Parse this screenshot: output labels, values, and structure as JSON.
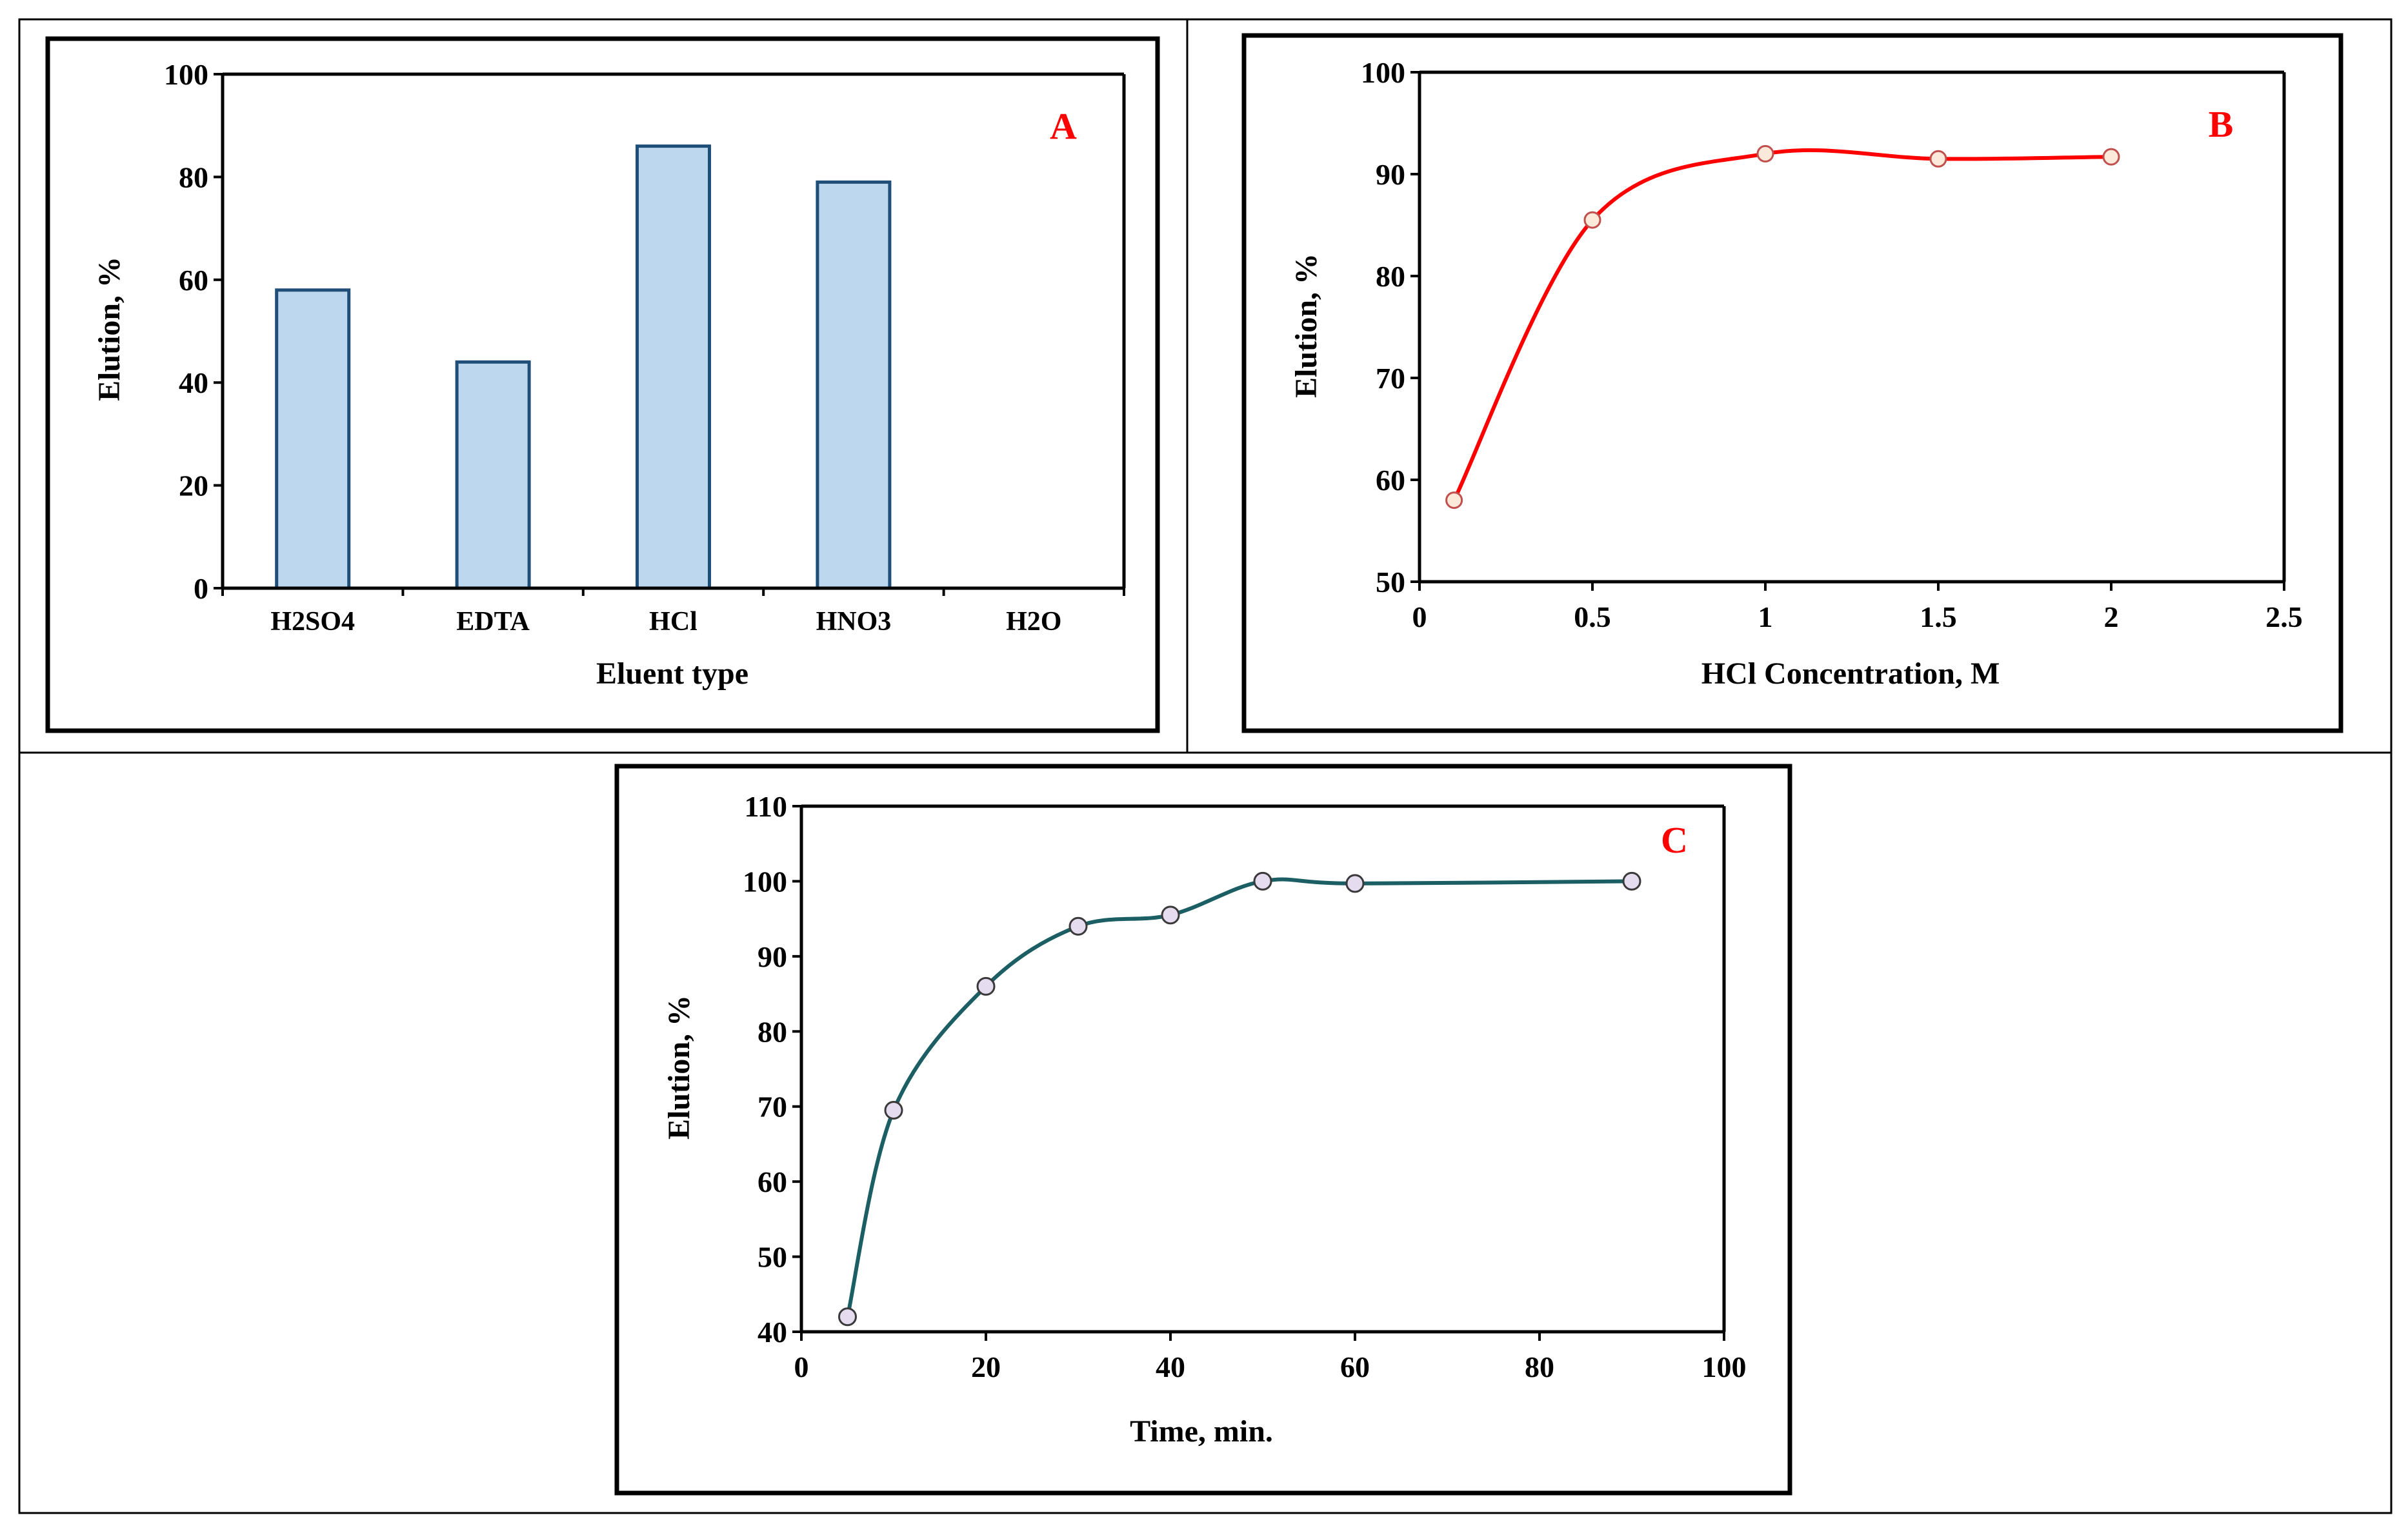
{
  "colors": {
    "bar_fill": "#bdd7ee",
    "bar_stroke": "#1f4e79",
    "line_b": "#ff0000",
    "marker_b_fill": "#fde9d9",
    "marker_b_stroke": "#c0504d",
    "line_c": "#1b5e63",
    "marker_c_fill": "#e6dcef",
    "marker_c_stroke": "#3a3a3a",
    "panel_letter": "#ff0000"
  },
  "chart_data": [
    {
      "type": "bar",
      "panel_label": "A",
      "title": "",
      "categories": [
        "H2SO4",
        "EDTA",
        "HCl",
        "HNO3",
        "H2O"
      ],
      "values": [
        58,
        44,
        86,
        79,
        0
      ],
      "xlabel": "Eluent type",
      "ylabel": "Elution, %",
      "ylim": [
        0,
        100
      ],
      "yticks": [
        "0",
        "20",
        "40",
        "60",
        "80",
        "100"
      ],
      "grid": false
    },
    {
      "type": "line",
      "panel_label": "B",
      "title": "",
      "x": [
        0.1,
        0.5,
        1,
        1.5,
        2
      ],
      "y": [
        58,
        85.5,
        92,
        91.5,
        91.7
      ],
      "xlabel": "HCl Concentration, M",
      "ylabel": "Elution, %",
      "xlim": [
        0,
        2.5
      ],
      "ylim": [
        50,
        100
      ],
      "xticks": [
        "0",
        "0.5",
        "1",
        "1.5",
        "2",
        "2.5"
      ],
      "yticks": [
        "50",
        "60",
        "70",
        "80",
        "90",
        "100"
      ],
      "grid": false
    },
    {
      "type": "line",
      "panel_label": "C",
      "title": "",
      "x": [
        5,
        10,
        20,
        30,
        40,
        50,
        60,
        90
      ],
      "y": [
        42,
        69.5,
        86,
        94,
        95.5,
        100,
        99.7,
        100
      ],
      "xlabel": "Time, min.",
      "ylabel": "Elution, %",
      "xlim": [
        0,
        100
      ],
      "ylim": [
        40,
        110
      ],
      "xticks": [
        "0",
        "20",
        "40",
        "60",
        "80",
        "100"
      ],
      "yticks": [
        "40",
        "50",
        "60",
        "70",
        "80",
        "90",
        "100",
        "110"
      ],
      "grid": false
    }
  ]
}
